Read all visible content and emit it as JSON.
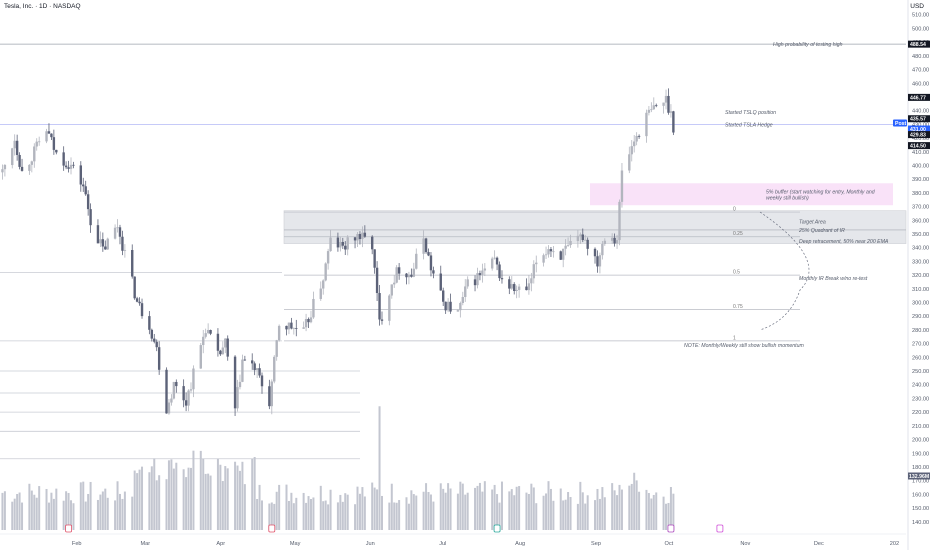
{
  "header": {
    "symbol": "Tesla, Inc. · 1D · NASDAQ",
    "currency": "USD"
  },
  "colors": {
    "candle_up": "#b2b5be",
    "candle_down": "#5c6278",
    "volume": "#c3c6d0",
    "target_zone": "#d1d4dc",
    "buffer_zone": "#f6d6f5",
    "level_line": "#9ea3ad",
    "hline_blue": "#b3b9f6",
    "post_badge": "#2962ff",
    "dark_badge": "#131722"
  },
  "chart_data": {
    "type": "candlestick",
    "title": "Tesla, Inc. · 1D · NASDAQ",
    "xlabel": "",
    "ylabel": "USD",
    "ylim": [
      134,
      512
    ],
    "y_ticks": [
      140,
      150,
      160,
      170,
      180,
      190,
      200,
      210,
      220,
      230,
      240,
      250,
      260,
      270,
      280,
      290,
      300,
      310,
      320,
      330,
      340,
      350,
      360,
      370,
      380,
      390,
      400,
      410,
      420,
      430,
      440,
      450,
      460,
      470,
      480,
      490,
      500,
      510
    ],
    "y_tick_labels": [
      "140.00",
      "150.00",
      "160.00",
      "170.00",
      "180.00",
      "190.00",
      "200.00",
      "210.00",
      "220.00",
      "230.00",
      "240.00",
      "250.00",
      "260.00",
      "270.00",
      "280.00",
      "290.00",
      "300.00",
      "310.00",
      "320.00",
      "330.00",
      "340.00",
      "350.00",
      "360.00",
      "370.00",
      "380.00",
      "390.00",
      "400.00",
      "410.00",
      "420.00",
      "430.00",
      "440.00",
      "450.00",
      "460.00",
      "470.00",
      "480.00",
      "490.00",
      "500.00",
      "510.00"
    ],
    "x_labels": [
      "Feb",
      "Mar",
      "Apr",
      "May",
      "Jun",
      "Jul",
      "Aug",
      "Sep",
      "Oct",
      "Nov",
      "Dec",
      "202"
    ],
    "grid": false,
    "price_series": [
      [
        "2025-01-02",
        395
      ],
      [
        "2025-01-07",
        420
      ],
      [
        "2025-01-10",
        395
      ],
      [
        "2025-01-15",
        410
      ],
      [
        "2025-01-20",
        426
      ],
      [
        "2025-01-24",
        408
      ],
      [
        "2025-01-30",
        400
      ],
      [
        "2025-02-04",
        385
      ],
      [
        "2025-02-07",
        360
      ],
      [
        "2025-02-12",
        338
      ],
      [
        "2025-02-18",
        356
      ],
      [
        "2025-02-21",
        336
      ],
      [
        "2025-02-26",
        300
      ],
      [
        "2025-03-03",
        284
      ],
      [
        "2025-03-06",
        266
      ],
      [
        "2025-03-10",
        222
      ],
      [
        "2025-03-13",
        240
      ],
      [
        "2025-03-18",
        228
      ],
      [
        "2025-03-21",
        248
      ],
      [
        "2025-03-26",
        282
      ],
      [
        "2025-03-31",
        260
      ],
      [
        "2025-04-03",
        270
      ],
      [
        "2025-04-07",
        221
      ],
      [
        "2025-04-10",
        258
      ],
      [
        "2025-04-15",
        252
      ],
      [
        "2025-04-21",
        227
      ],
      [
        "2025-04-25",
        284
      ],
      [
        "2025-04-30",
        282
      ],
      [
        "2025-05-05",
        278
      ],
      [
        "2025-05-09",
        298
      ],
      [
        "2025-05-13",
        318
      ],
      [
        "2025-05-16",
        345
      ],
      [
        "2025-05-21",
        340
      ],
      [
        "2025-05-27",
        349
      ],
      [
        "2025-05-30",
        346
      ],
      [
        "2025-06-02",
        342
      ],
      [
        "2025-06-05",
        285
      ],
      [
        "2025-06-10",
        315
      ],
      [
        "2025-06-13",
        325
      ],
      [
        "2025-06-18",
        320
      ],
      [
        "2025-06-23",
        348
      ],
      [
        "2025-06-26",
        325
      ],
      [
        "2025-07-01",
        300
      ],
      [
        "2025-07-07",
        292
      ],
      [
        "2025-07-11",
        313
      ],
      [
        "2025-07-16",
        320
      ],
      [
        "2025-07-22",
        330
      ],
      [
        "2025-07-25",
        316
      ],
      [
        "2025-07-31",
        308
      ],
      [
        "2025-08-05",
        310
      ],
      [
        "2025-08-08",
        330
      ],
      [
        "2025-08-13",
        340
      ],
      [
        "2025-08-18",
        335
      ],
      [
        "2025-08-22",
        340
      ],
      [
        "2025-08-27",
        349
      ],
      [
        "2025-09-02",
        330
      ],
      [
        "2025-09-05",
        350
      ],
      [
        "2025-09-10",
        347
      ],
      [
        "2025-09-12",
        395
      ],
      [
        "2025-09-17",
        418
      ],
      [
        "2025-09-22",
        436
      ],
      [
        "2025-09-26",
        443
      ],
      [
        "2025-09-30",
        448
      ],
      [
        "2025-10-02",
        438
      ],
      [
        "2025-10-03",
        429
      ]
    ],
    "volume_scale_max_m": 300,
    "last_volume_label": "132.96M",
    "annotations": [
      {
        "text": "High probability of testing high",
        "price": 488.54
      },
      {
        "text": "Started TSLQ position",
        "price": 439
      },
      {
        "text": "Started TSLA Hedge",
        "price": 430
      },
      {
        "text": "5% buffer (start watching for entry, Monthly and weekly still bullish)",
        "price": 378
      },
      {
        "text": "Target Area",
        "price": 359
      },
      {
        "text": "25% Quadrant of IR",
        "price": 353
      },
      {
        "text": "Deep retracement, 50% near 200 EMA",
        "price": 345
      },
      {
        "text": "Monthly IR Break w/no re-test",
        "price": 318
      },
      {
        "text": "NOTE: Monthly/Weekly still show bullish momentum",
        "price": 269
      }
    ],
    "fib_labels": [
      {
        "text": "0",
        "price": 366
      },
      {
        "text": "0.25",
        "price": 348
      },
      {
        "text": "0.5",
        "price": 320
      },
      {
        "text": "0.75",
        "price": 295
      },
      {
        "text": "1",
        "price": 272
      }
    ],
    "zones": [
      {
        "name": "buffer",
        "from": 371,
        "to": 387
      },
      {
        "name": "target",
        "from": 343,
        "to": 367
      }
    ],
    "price_labels": [
      {
        "text": "488.54",
        "price": 488.54,
        "kind": "dark"
      },
      {
        "text": "446.77",
        "price": 446.77,
        "kind": "dark"
      },
      {
        "text": "435.57",
        "price": 435.57,
        "kind": "dark"
      },
      {
        "text": "431.00",
        "price": 431.0,
        "kind": "blue"
      },
      {
        "text": "429.83",
        "price": 429.83,
        "kind": "dark"
      },
      {
        "text": "Post",
        "price": 431.0,
        "kind": "blue-tag"
      },
      {
        "text": "414.50",
        "price": 414.5,
        "kind": "dark"
      }
    ]
  }
}
